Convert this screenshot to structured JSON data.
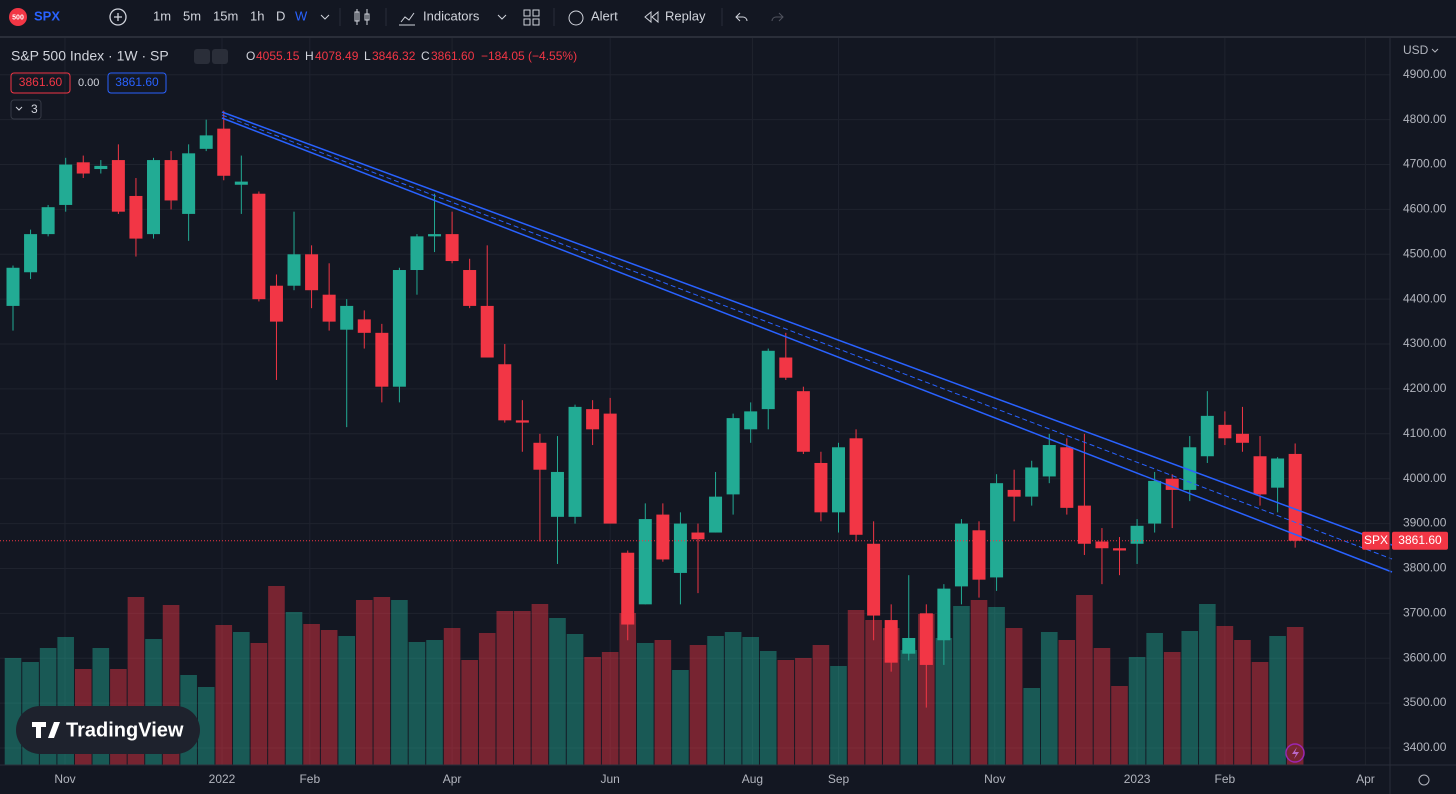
{
  "toolbar": {
    "logo": "500",
    "symbol": "SPX",
    "intervals": [
      "1m",
      "5m",
      "15m",
      "1h",
      "D",
      "W"
    ],
    "indicators": "Indicators",
    "alert": "Alert",
    "replay": "Replay"
  },
  "legend": {
    "title": "S&P 500 Index · 1W · SP",
    "o_label": "O",
    "open": "4055.15",
    "h_label": "H",
    "high": "4078.49",
    "l_label": "L",
    "low": "3846.32",
    "c_label": "C",
    "close": "3861.60",
    "change": "−184.05 (−4.55%)",
    "bid": "3861.60",
    "spread": "0.00",
    "ask": "3861.60",
    "indicator_count": "3"
  },
  "chart_data": {
    "type": "candlestick",
    "currency": "USD",
    "open": [
      4385,
      4460,
      4545,
      4610,
      4705,
      4690,
      4710,
      4630,
      4545,
      4710,
      4590,
      4735,
      4780,
      4655,
      4635,
      4430,
      4430,
      4500,
      4410,
      4332,
      4355,
      4325,
      4205,
      4465,
      4540,
      4545,
      4465,
      4385,
      4255,
      4130,
      4080,
      3915,
      3915,
      4155,
      4145,
      3835,
      3720,
      3920,
      3790,
      3880,
      3880,
      3965,
      4110,
      4155,
      4270,
      4195,
      4035,
      3925,
      4090,
      3855,
      3685,
      3610,
      3700,
      3640,
      3760,
      3885,
      3780,
      3975,
      3960,
      4005,
      4070,
      3940,
      3860,
      3845,
      3855,
      3900,
      4000,
      3975,
      4050,
      4120,
      4100,
      4050,
      3980,
      4055.15
    ],
    "high": [
      4475,
      4555,
      4610,
      4715,
      4720,
      4710,
      4745,
      4670,
      4715,
      4730,
      4745,
      4800,
      4820,
      4720,
      4640,
      4455,
      4595,
      4520,
      4480,
      4400,
      4375,
      4345,
      4470,
      4545,
      4635,
      4595,
      4490,
      4520,
      4300,
      4175,
      4100,
      4095,
      4165,
      4175,
      4180,
      3840,
      3945,
      3945,
      3925,
      3900,
      4015,
      4145,
      4170,
      4290,
      4325,
      4205,
      4060,
      4080,
      4110,
      3905,
      3720,
      3785,
      3720,
      3765,
      3910,
      3905,
      4010,
      4020,
      4040,
      4100,
      4090,
      4100,
      3890,
      3870,
      3910,
      4015,
      4010,
      4095,
      4195,
      4150,
      4160,
      4095,
      4048,
      4078.49
    ],
    "low": [
      4330,
      4445,
      4540,
      4595,
      4670,
      4680,
      4590,
      4495,
      4535,
      4600,
      4530,
      4730,
      4665,
      4590,
      4395,
      4220,
      4420,
      4380,
      4330,
      4115,
      4290,
      4170,
      4170,
      4410,
      4505,
      4480,
      4380,
      4270,
      4125,
      4060,
      3860,
      3810,
      3900,
      4075,
      3900,
      3640,
      3720,
      3815,
      3720,
      3745,
      3880,
      3920,
      4080,
      4110,
      4220,
      4055,
      3905,
      3880,
      3860,
      3640,
      3570,
      3595,
      3490,
      3585,
      3720,
      3735,
      3750,
      3905,
      3940,
      3990,
      3920,
      3830,
      3765,
      3785,
      3810,
      3880,
      3890,
      3950,
      4035,
      4075,
      4060,
      3940,
      3925,
      3846.32
    ],
    "close": [
      4470,
      4545,
      4605,
      4700,
      4680,
      4697,
      4595,
      4535,
      4710,
      4620,
      4725,
      4765,
      4675,
      4662,
      4400,
      4350,
      4500,
      4420,
      4350,
      4385,
      4325,
      4205,
      4465,
      4540,
      4545,
      4485,
      4385,
      4270,
      4130,
      4125,
      4020,
      4015,
      4160,
      4110,
      3900,
      3675,
      3910,
      3820,
      3900,
      3865,
      3960,
      4135,
      4150,
      4285,
      4225,
      4060,
      3925,
      4070,
      3875,
      3695,
      3590,
      3645,
      3585,
      3755,
      3900,
      3775,
      3990,
      3960,
      4025,
      4075,
      3935,
      3855,
      3845,
      3840,
      3895,
      3995,
      3975,
      4070,
      4140,
      4090,
      4080,
      3965,
      4045,
      3861.6
    ],
    "volume": [
      107,
      103,
      117,
      128,
      96,
      117,
      96,
      168,
      126,
      160,
      90,
      78,
      140,
      133,
      122,
      179,
      153,
      141,
      135,
      129,
      165,
      168,
      165,
      123,
      125,
      137,
      105,
      132,
      154,
      154,
      161,
      147,
      131,
      108,
      113,
      152,
      122,
      125,
      95,
      120,
      129,
      133,
      128,
      114,
      105,
      107,
      120,
      99,
      155,
      145,
      137,
      115,
      151,
      127,
      159,
      165,
      158,
      137,
      77,
      133,
      125,
      170,
      117,
      79,
      108,
      132,
      113,
      134,
      161,
      139,
      125,
      103,
      129,
      138
    ],
    "up_color": "#22ab94",
    "down_color": "#f23645",
    "ylim": [
      3362,
      4982
    ],
    "yticks": [
      {
        "value": 3400,
        "label": "3400.00"
      },
      {
        "value": 3500,
        "label": "3500.00"
      },
      {
        "value": 3600,
        "label": "3600.00"
      },
      {
        "value": 3700,
        "label": "3700.00"
      },
      {
        "value": 3800,
        "label": "3800.00"
      },
      {
        "value": 3900,
        "label": "3900.00"
      },
      {
        "value": 4000,
        "label": "4000.00"
      },
      {
        "value": 4100,
        "label": "4100.00"
      },
      {
        "value": 4200,
        "label": "4200.00"
      },
      {
        "value": 4300,
        "label": "4300.00"
      },
      {
        "value": 4400,
        "label": "4400.00"
      },
      {
        "value": 4500,
        "label": "4500.00"
      },
      {
        "value": 4600,
        "label": "4600.00"
      },
      {
        "value": 4700,
        "label": "4700.00"
      },
      {
        "value": 4800,
        "label": "4800.00"
      },
      {
        "value": 4900,
        "label": "4900.00"
      }
    ],
    "xlim": [
      -0.74,
      78.4
    ],
    "xticks": [
      {
        "value": 2.96,
        "label": "Nov"
      },
      {
        "value": 11.9,
        "label": "2022"
      },
      {
        "value": 16.9,
        "label": "Feb"
      },
      {
        "value": 25.0,
        "label": "Apr"
      },
      {
        "value": 34.0,
        "label": "Jun"
      },
      {
        "value": 42.1,
        "label": "Aug"
      },
      {
        "value": 47.0,
        "label": "Sep"
      },
      {
        "value": 55.9,
        "label": "Nov"
      },
      {
        "value": 64.0,
        "label": "2023"
      },
      {
        "value": 69.0,
        "label": "Feb"
      },
      {
        "value": 77.0,
        "label": "Apr"
      }
    ],
    "grid": true,
    "price_label": {
      "symbol": "SPX",
      "value": "3861.60"
    }
  },
  "branding": "TradingView"
}
